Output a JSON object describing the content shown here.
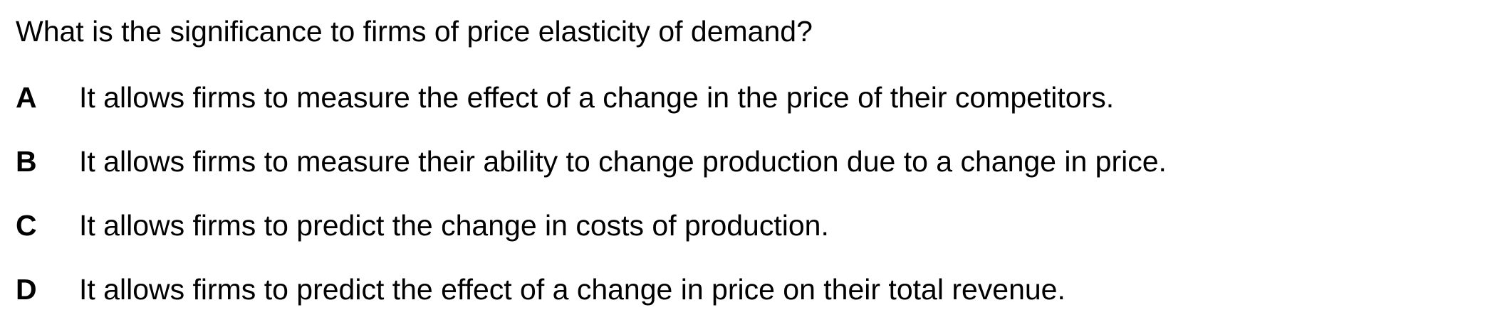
{
  "question": {
    "text": "What is the significance to firms of price elasticity of demand?"
  },
  "options": [
    {
      "letter": "A",
      "text": "It allows firms to measure the effect of a change in the price of their competitors."
    },
    {
      "letter": "B",
      "text": "It allows firms to measure their ability to change production due to a change in price."
    },
    {
      "letter": "C",
      "text": "It allows firms to predict the change in costs of production."
    },
    {
      "letter": "D",
      "text": "It allows firms to predict the effect of a change in price on their total revenue."
    }
  ]
}
